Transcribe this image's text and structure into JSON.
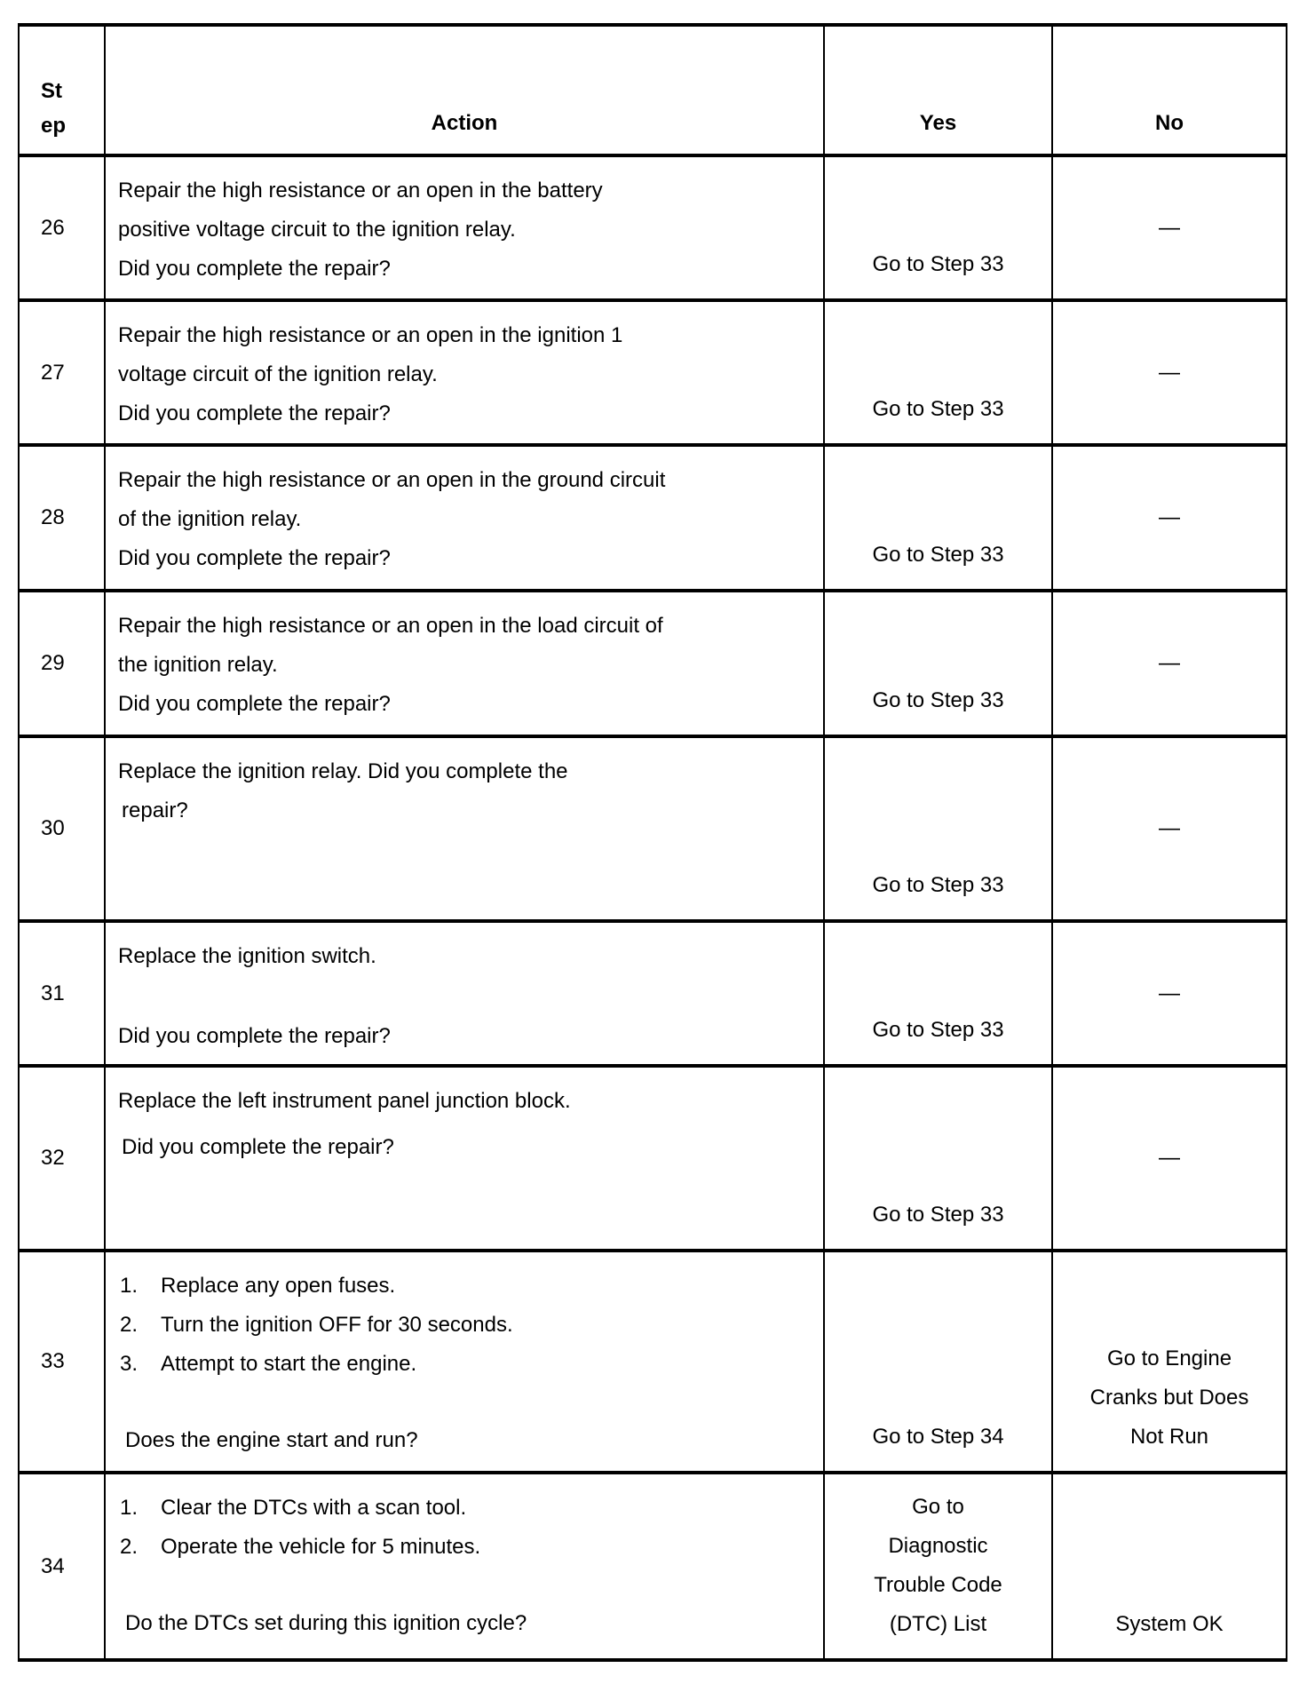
{
  "header": {
    "step": "St ep",
    "action": "Action",
    "yes": "Yes",
    "no": "No"
  },
  "rows": [
    {
      "step": "26",
      "action": [
        "Repair the high resistance or an open in the battery",
        "positive voltage circuit to the ignition relay.",
        "Did you complete the repair?"
      ],
      "yes": "Go to Step 33",
      "no": "—"
    },
    {
      "step": "27",
      "action": [
        "Repair the high resistance or an open in the ignition 1",
        "voltage circuit of the ignition relay.",
        "Did you complete the repair?"
      ],
      "yes": "Go to Step 33",
      "no": "—"
    },
    {
      "step": "28",
      "action": [
        "Repair the high resistance or an open in the ground circuit",
        "of the ignition relay.",
        "Did you complete the repair?"
      ],
      "yes": "Go to Step 33",
      "no": "—"
    },
    {
      "step": "29",
      "action": [
        "Repair the high resistance or an open in the load circuit of",
        "the ignition relay.",
        "Did you complete the repair?"
      ],
      "yes": "Go to Step 33",
      "no": "—"
    },
    {
      "step": "30",
      "action": [
        "Replace the ignition relay. Did you complete the",
        "repair?"
      ],
      "yes": "Go to Step 33",
      "no": "—"
    },
    {
      "step": "31",
      "action": [
        "Replace the ignition switch.",
        "Did you complete the repair?"
      ],
      "yes": "Go to Step 33",
      "no": "—"
    },
    {
      "step": "32",
      "action": [
        "Replace the left instrument panel junction block.",
        "Did you complete the repair?"
      ],
      "yes": "Go to Step 33",
      "no": "—"
    },
    {
      "step": "33",
      "list": [
        {
          "n": "1.",
          "t": "Replace any open fuses."
        },
        {
          "n": "2.",
          "t": "Turn the ignition OFF for 30 seconds."
        },
        {
          "n": "3.",
          "t": "Attempt to start the engine."
        }
      ],
      "question": "Does the engine start and run?",
      "yes": "Go to Step 34",
      "no": [
        "Go to Engine",
        "Cranks but Does",
        "Not Run"
      ]
    },
    {
      "step": "34",
      "list": [
        {
          "n": "1.",
          "t": "Clear the DTCs with a scan tool."
        },
        {
          "n": "2.",
          "t": "Operate the vehicle for 5 minutes."
        }
      ],
      "question": "Do the DTCs set during this ignition cycle?",
      "yes": [
        "Go to",
        "Diagnostic",
        "Trouble Code",
        "(DTC) List"
      ],
      "no": "System OK"
    }
  ]
}
